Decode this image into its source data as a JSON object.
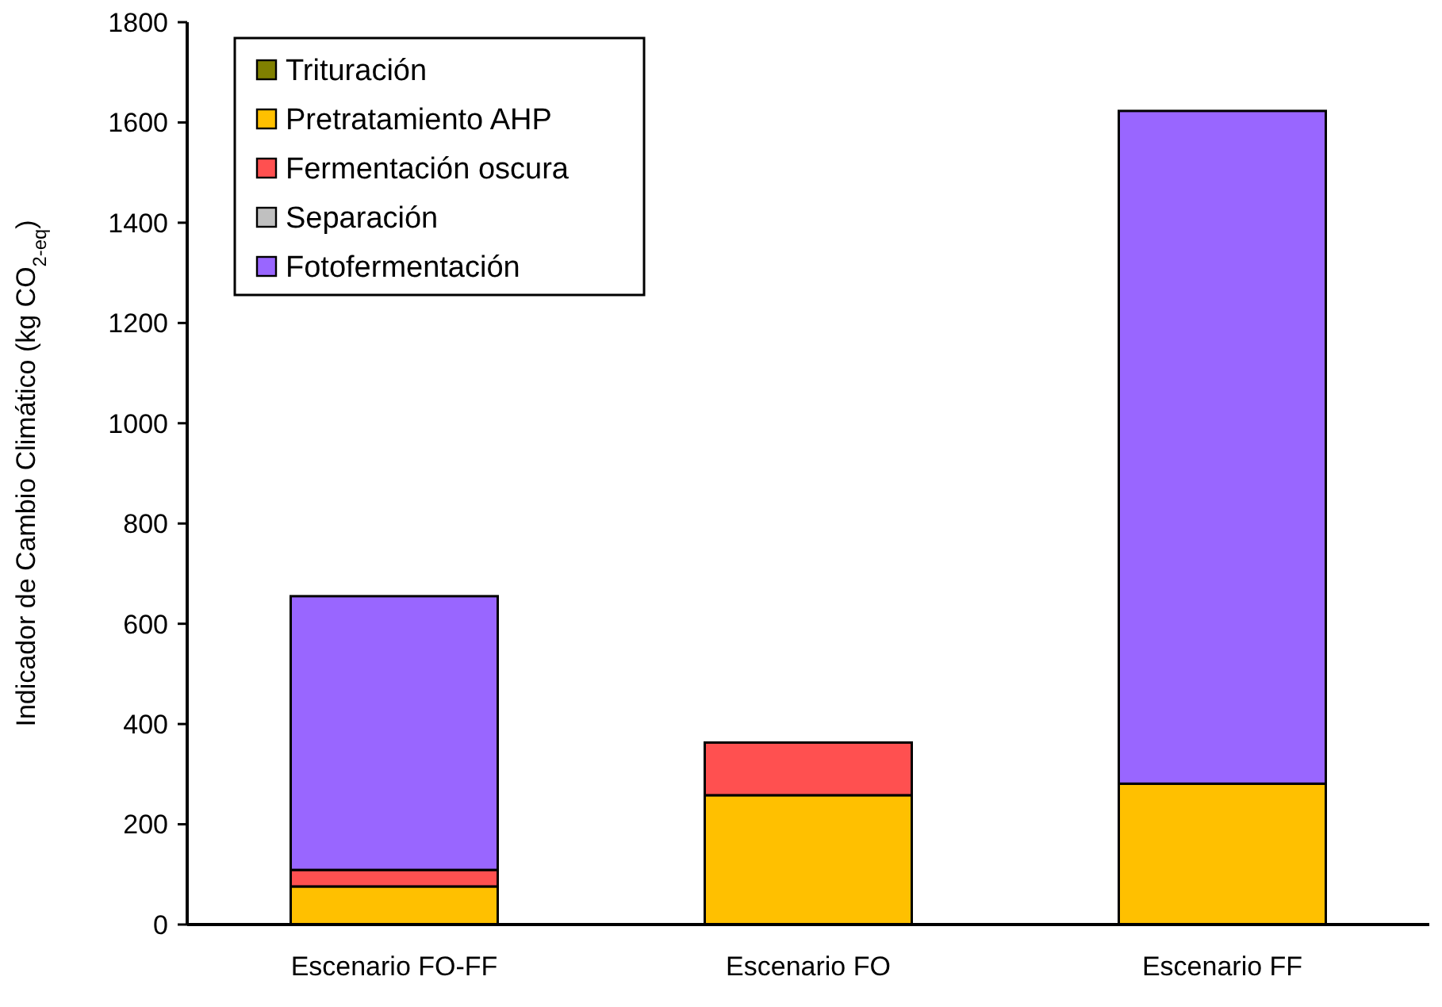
{
  "chart_data": {
    "type": "bar",
    "stacked": true,
    "ylabel": "Indicador de Cambio Climático (kg CO$_{2-eq}$)",
    "categories": [
      "Escenario FO-FF",
      "Escenario FO",
      "Escenario FF"
    ],
    "series": [
      {
        "name": "Trituración",
        "color": "#808000",
        "values": [
          0,
          0,
          0
        ]
      },
      {
        "name": "Pretratamiento AHP",
        "color": "#ffc000",
        "values": [
          76,
          258,
          281
        ]
      },
      {
        "name": "Fermentación oscura",
        "color": "#ff5050",
        "values": [
          33,
          105,
          0
        ]
      },
      {
        "name": "Separación",
        "color": "#c0c0c0",
        "values": [
          0,
          0,
          0
        ]
      },
      {
        "name": "Fotofermentación",
        "color": "#9966ff",
        "values": [
          546,
          0,
          1342
        ]
      }
    ],
    "ylim": [
      0,
      1800
    ],
    "yticks": [
      0,
      200,
      400,
      600,
      800,
      1000,
      1200,
      1400,
      1600,
      1800
    ],
    "grid": false,
    "legend": "top left"
  }
}
